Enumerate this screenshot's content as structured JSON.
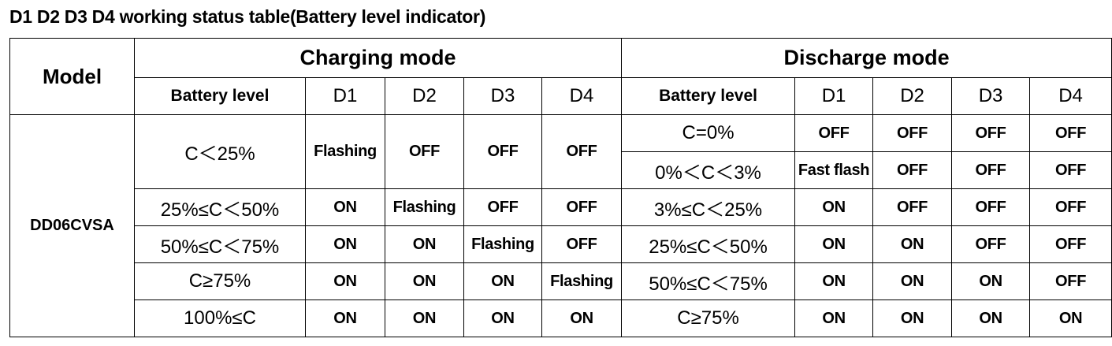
{
  "title": "D1 D2 D3 D4 working status table(Battery level indicator)",
  "header": {
    "model": "Model",
    "charging_mode": "Charging mode",
    "discharge_mode": "Discharge mode",
    "battery_level": "Battery level",
    "leds": [
      "D1",
      "D2",
      "D3",
      "D4"
    ]
  },
  "model_name": "DD06CVSA",
  "charging_rows": [
    {
      "level": "C＜25%",
      "states": [
        "Flashing",
        "OFF",
        "OFF",
        "OFF"
      ]
    },
    {
      "level": "25%≤C＜50%",
      "states": [
        "ON",
        "Flashing",
        "OFF",
        "OFF"
      ]
    },
    {
      "level": "50%≤C＜75%",
      "states": [
        "ON",
        "ON",
        "Flashing",
        "OFF"
      ]
    },
    {
      "level": "C≥75%",
      "states": [
        "ON",
        "ON",
        "ON",
        "Flashing"
      ]
    },
    {
      "level": "100%≤C",
      "states": [
        "ON",
        "ON",
        "ON",
        "ON"
      ]
    }
  ],
  "discharge_rows": [
    {
      "level": "C=0%",
      "states": [
        "OFF",
        "OFF",
        "OFF",
        "OFF"
      ]
    },
    {
      "level": "0%＜C＜3%",
      "states": [
        "Fast flash",
        "OFF",
        "OFF",
        "OFF"
      ]
    },
    {
      "level": "3%≤C＜25%",
      "states": [
        "ON",
        "OFF",
        "OFF",
        "OFF"
      ]
    },
    {
      "level": "25%≤C＜50%",
      "states": [
        "ON",
        "ON",
        "OFF",
        "OFF"
      ]
    },
    {
      "level": "50%≤C＜75%",
      "states": [
        "ON",
        "ON",
        "ON",
        "OFF"
      ]
    },
    {
      "level": "C≥75%",
      "states": [
        "ON",
        "ON",
        "ON",
        "ON"
      ]
    }
  ]
}
